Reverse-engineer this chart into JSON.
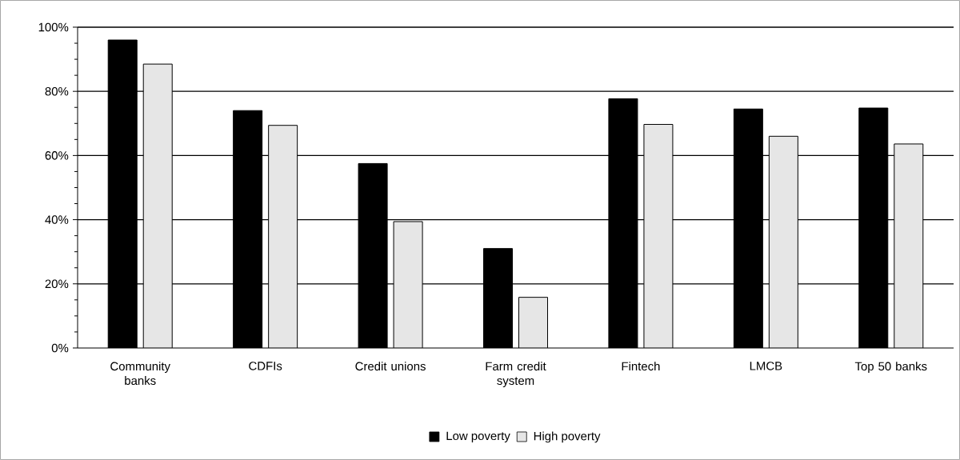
{
  "chart_data": {
    "type": "bar",
    "categories": [
      "Community banks",
      "CDFIs",
      "Credit unions",
      "Farm credit system",
      "Fintech",
      "LMCB",
      "Top 50 banks"
    ],
    "series": [
      {
        "name": "Low poverty",
        "color": "#000000",
        "values": [
          96,
          74,
          57.5,
          31,
          77.7,
          74.5,
          74.8
        ]
      },
      {
        "name": "High poverty",
        "color": "#e6e6e6",
        "values": [
          88.5,
          69.4,
          39.4,
          15.8,
          69.7,
          66,
          63.6
        ]
      }
    ],
    "ylim": [
      0,
      100
    ],
    "yticks": [
      {
        "value": 0,
        "label": "0%"
      },
      {
        "value": 5,
        "label": null
      },
      {
        "value": 10,
        "label": null
      },
      {
        "value": 15,
        "label": null
      },
      {
        "value": 20,
        "label": "20%"
      },
      {
        "value": 25,
        "label": null
      },
      {
        "value": 30,
        "label": null
      },
      {
        "value": 35,
        "label": null
      },
      {
        "value": 40,
        "label": "40%"
      },
      {
        "value": 45,
        "label": null
      },
      {
        "value": 50,
        "label": null
      },
      {
        "value": 55,
        "label": null
      },
      {
        "value": 60,
        "label": "60%"
      },
      {
        "value": 65,
        "label": null
      },
      {
        "value": 70,
        "label": null
      },
      {
        "value": 75,
        "label": null
      },
      {
        "value": 80,
        "label": "80%"
      },
      {
        "value": 85,
        "label": null
      },
      {
        "value": 90,
        "label": null
      },
      {
        "value": 95,
        "label": null
      },
      {
        "value": 100,
        "label": "100%"
      }
    ],
    "grid": "y",
    "legend": "bottom"
  }
}
